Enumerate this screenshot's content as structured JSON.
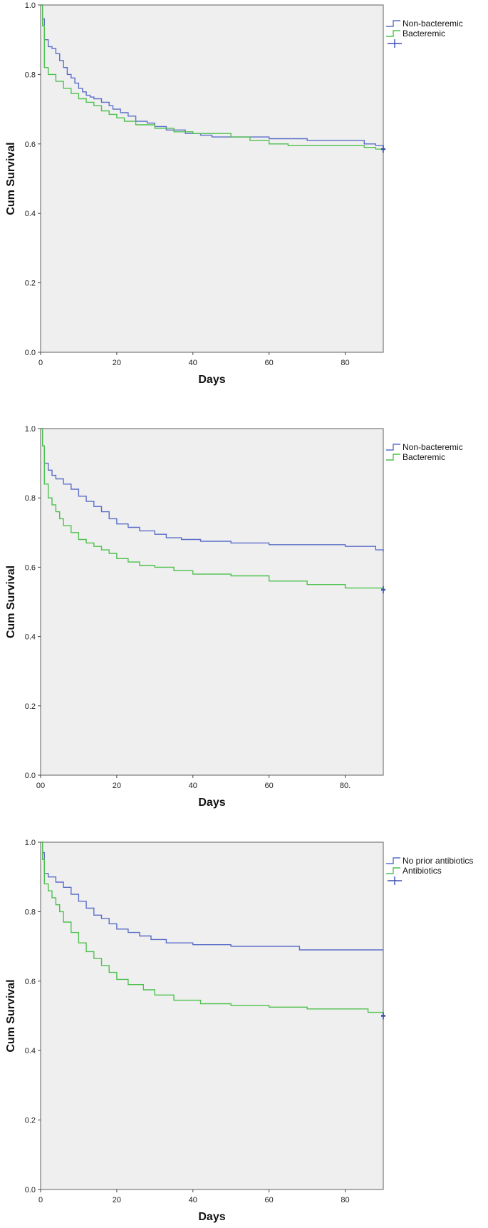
{
  "chart_data": [
    {
      "type": "line",
      "xlabel": "Days",
      "ylabel": "Cum Survival",
      "xlim": [
        0,
        90
      ],
      "ylim": [
        0,
        1
      ],
      "x_ticks": [
        "0",
        "20",
        "40",
        "60",
        "80"
      ],
      "y_ticks": [
        "0.0",
        "0.2",
        "0.4",
        "0.6",
        "0.8",
        "1.0"
      ],
      "legend": "top-right",
      "legend_censor_marker": true,
      "series": [
        {
          "name": "Non-bacteremic",
          "color": "#5b6ec8",
          "x": [
            0,
            0.5,
            1,
            2,
            3,
            4,
            5,
            6,
            7,
            8,
            9,
            10,
            11,
            12,
            13,
            14,
            16,
            18,
            19,
            21,
            23,
            25,
            28,
            30,
            33,
            38,
            42,
            45,
            50,
            60,
            70,
            80,
            85,
            88,
            90
          ],
          "y": [
            1.0,
            0.96,
            0.9,
            0.88,
            0.875,
            0.86,
            0.84,
            0.82,
            0.8,
            0.79,
            0.775,
            0.76,
            0.75,
            0.74,
            0.735,
            0.73,
            0.72,
            0.71,
            0.7,
            0.69,
            0.68,
            0.665,
            0.66,
            0.65,
            0.64,
            0.63,
            0.625,
            0.62,
            0.62,
            0.615,
            0.61,
            0.61,
            0.6,
            0.595,
            0.59
          ]
        },
        {
          "name": "Bacteremic",
          "color": "#4fc14f",
          "x": [
            0,
            0.5,
            1,
            2,
            4,
            6,
            8,
            10,
            12,
            14,
            16,
            18,
            20,
            22,
            25,
            30,
            35,
            40,
            50,
            55,
            60,
            65,
            70,
            80,
            85,
            88,
            90
          ],
          "y": [
            1.0,
            0.94,
            0.82,
            0.8,
            0.78,
            0.76,
            0.745,
            0.73,
            0.72,
            0.71,
            0.695,
            0.685,
            0.675,
            0.665,
            0.655,
            0.645,
            0.635,
            0.63,
            0.62,
            0.61,
            0.6,
            0.595,
            0.595,
            0.595,
            0.59,
            0.585,
            0.585
          ]
        }
      ]
    },
    {
      "type": "line",
      "xlabel": "Days",
      "ylabel": "Cum Survival",
      "xlim": [
        0,
        90
      ],
      "ylim": [
        0,
        1
      ],
      "x_ticks": [
        "00",
        "20",
        "40",
        "60",
        "80."
      ],
      "y_ticks": [
        "0.0",
        "0.2",
        "0.4",
        "0.6",
        "0.8",
        "1.0"
      ],
      "legend": "top-right",
      "legend_censor_marker": false,
      "series": [
        {
          "name": "Non-bacteremic",
          "color": "#5b6ec8",
          "x": [
            0,
            0.5,
            1,
            2,
            3,
            4,
            6,
            8,
            10,
            12,
            14,
            16,
            18,
            20,
            23,
            26,
            30,
            33,
            37,
            42,
            50,
            60,
            70,
            80,
            85,
            88,
            90
          ],
          "y": [
            1.0,
            0.95,
            0.9,
            0.88,
            0.865,
            0.855,
            0.84,
            0.825,
            0.805,
            0.79,
            0.775,
            0.76,
            0.74,
            0.725,
            0.715,
            0.705,
            0.695,
            0.685,
            0.68,
            0.675,
            0.67,
            0.665,
            0.665,
            0.66,
            0.66,
            0.65,
            0.645
          ]
        },
        {
          "name": "Bacteremic",
          "color": "#4fc14f",
          "x": [
            0,
            0.5,
            1,
            2,
            3,
            4,
            5,
            6,
            8,
            10,
            12,
            14,
            16,
            18,
            20,
            23,
            26,
            30,
            35,
            40,
            50,
            60,
            70,
            80,
            90
          ],
          "y": [
            1.0,
            0.95,
            0.84,
            0.8,
            0.78,
            0.76,
            0.74,
            0.72,
            0.7,
            0.68,
            0.67,
            0.66,
            0.65,
            0.64,
            0.625,
            0.615,
            0.605,
            0.6,
            0.59,
            0.58,
            0.575,
            0.56,
            0.55,
            0.54,
            0.535
          ]
        }
      ]
    },
    {
      "type": "line",
      "xlabel": "Days",
      "ylabel": "Cum Survival",
      "xlim": [
        0,
        90
      ],
      "ylim": [
        0,
        1
      ],
      "x_ticks": [
        "0",
        "20",
        "40",
        "60",
        "80"
      ],
      "y_ticks": [
        "0.0",
        "0.2",
        "0.4",
        "0.6",
        "0.8",
        "1.0"
      ],
      "legend": "top-right",
      "legend_censor_marker": true,
      "series": [
        {
          "name": "No prior antibiotics",
          "color": "#5b6ec8",
          "x": [
            0,
            0.5,
            1,
            2,
            4,
            6,
            8,
            10,
            12,
            14,
            16,
            18,
            20,
            23,
            26,
            29,
            33,
            40,
            50,
            60,
            68,
            80,
            90
          ],
          "y": [
            1.0,
            0.97,
            0.91,
            0.9,
            0.885,
            0.87,
            0.85,
            0.83,
            0.81,
            0.79,
            0.78,
            0.765,
            0.75,
            0.74,
            0.73,
            0.72,
            0.71,
            0.705,
            0.7,
            0.7,
            0.69,
            0.69,
            0.69
          ]
        },
        {
          "name": "Antibiotics",
          "color": "#4fc14f",
          "x": [
            0,
            0.5,
            1,
            2,
            3,
            4,
            5,
            6,
            8,
            10,
            12,
            14,
            16,
            18,
            20,
            23,
            27,
            30,
            35,
            42,
            50,
            60,
            70,
            80,
            86,
            90
          ],
          "y": [
            1.0,
            0.95,
            0.88,
            0.86,
            0.84,
            0.82,
            0.8,
            0.77,
            0.74,
            0.71,
            0.685,
            0.665,
            0.645,
            0.625,
            0.605,
            0.59,
            0.575,
            0.56,
            0.545,
            0.535,
            0.53,
            0.525,
            0.52,
            0.52,
            0.51,
            0.5
          ]
        }
      ]
    }
  ]
}
